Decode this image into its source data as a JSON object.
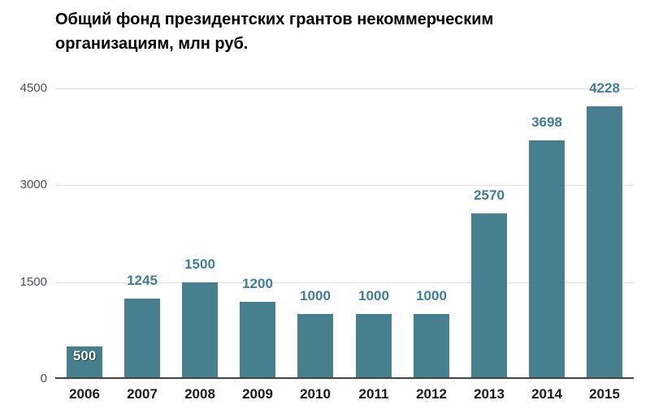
{
  "chart_data": {
    "type": "bar",
    "title": "Общий фонд президентских грантов некоммерческим организациям, млн руб.",
    "title_lines": [
      "Общий фонд президентских грантов некоммерческим",
      "организациям, млн руб."
    ],
    "categories": [
      "2006",
      "2007",
      "2008",
      "2009",
      "2010",
      "2011",
      "2012",
      "2013",
      "2014",
      "2015"
    ],
    "values": [
      500,
      1245,
      1500,
      1200,
      1000,
      1000,
      1000,
      2570,
      3698,
      4228
    ],
    "xlabel": "",
    "ylabel": "",
    "yticks": [
      0,
      1500,
      3000,
      4500
    ],
    "ylim": [
      0,
      4500
    ],
    "grid": true,
    "legend": false,
    "layout": {
      "value_labels": "above bars; first bar label rendered inside bar in white",
      "gridlines": "horizontal only"
    },
    "colors": {
      "background": "#ffffff",
      "bar": "#46808e",
      "value_label": "#3d7e9a",
      "value_label_inside": "#ffffff",
      "x_label": "#1a1a1a",
      "y_label": "#4c4c58",
      "axis_line": "#444444",
      "gridline": "#e0e0e0",
      "title": "#000000"
    }
  }
}
